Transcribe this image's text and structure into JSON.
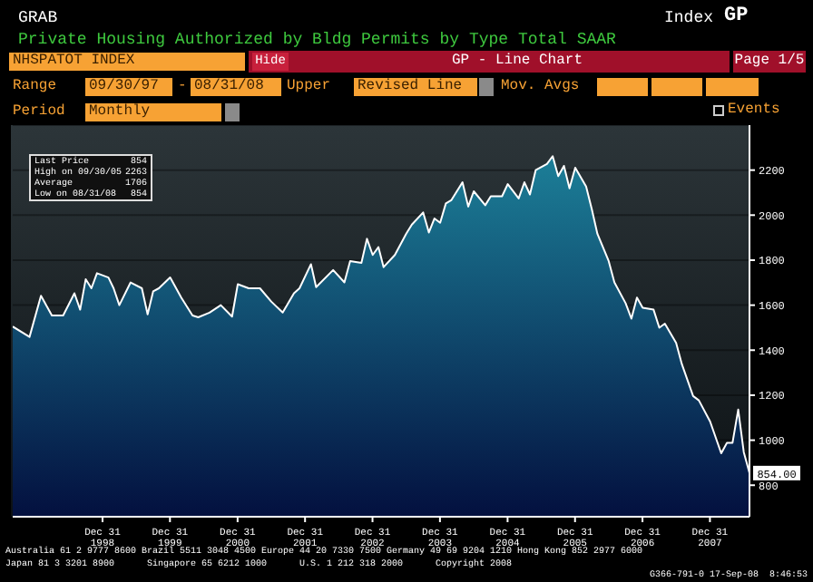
{
  "chart_data": {
    "type": "area",
    "title": "Private Housing Authorized by Bldg Permits by Type Total SAAR",
    "x": [
      "1997-09",
      "1997-12",
      "1998-02",
      "1998-04",
      "1998-06",
      "1998-08",
      "1998-09",
      "1998-10",
      "1998-11",
      "1998-12",
      "1999-02",
      "1999-03",
      "1999-04",
      "1999-06",
      "1999-08",
      "1999-09",
      "1999-10",
      "1999-11",
      "2000-01",
      "2000-03",
      "2000-05",
      "2000-06",
      "2000-08",
      "2000-10",
      "2000-12",
      "2001-01",
      "2001-03",
      "2001-05",
      "2001-07",
      "2001-09",
      "2001-11",
      "2001-12",
      "2002-02",
      "2002-03",
      "2002-06",
      "2002-08",
      "2002-09",
      "2002-11",
      "2002-12",
      "2003-01",
      "2003-02",
      "2003-03",
      "2003-05",
      "2003-07",
      "2003-08",
      "2003-10",
      "2003-11",
      "2003-12",
      "2004-01",
      "2004-02",
      "2004-03",
      "2004-05",
      "2004-06",
      "2004-07",
      "2004-09",
      "2004-10",
      "2004-12",
      "2005-01",
      "2005-03",
      "2005-04",
      "2005-05",
      "2005-06",
      "2005-08",
      "2005-09",
      "2005-10",
      "2005-11",
      "2005-12",
      "2006-01",
      "2006-03",
      "2006-04",
      "2006-05",
      "2006-07",
      "2006-08",
      "2006-10",
      "2006-11",
      "2006-12",
      "2007-01",
      "2007-03",
      "2007-04",
      "2007-05",
      "2007-07",
      "2007-08",
      "2007-10",
      "2007-11",
      "2008-01",
      "2008-03",
      "2008-04",
      "2008-05",
      "2008-06",
      "2008-07",
      "2008-08"
    ],
    "series": [
      {
        "color": "#1c7f98",
        "values": [
          1505,
          1459,
          1642,
          1554,
          1554,
          1653,
          1580,
          1715,
          1675,
          1742,
          1723,
          1675,
          1600,
          1701,
          1675,
          1559,
          1661,
          1675,
          1723,
          1634,
          1554,
          1546,
          1567,
          1600,
          1549,
          1693,
          1675,
          1675,
          1616,
          1567,
          1653,
          1675,
          1782,
          1680,
          1756,
          1701,
          1796,
          1788,
          1895,
          1823,
          1858,
          1769,
          1823,
          1917,
          1958,
          2012,
          1923,
          1985,
          1966,
          2052,
          2066,
          2146,
          2038,
          2106,
          2044,
          2084,
          2084,
          2138,
          2074,
          2146,
          2092,
          2200,
          2227,
          2262,
          2173,
          2219,
          2119,
          2211,
          2127,
          2025,
          1917,
          1796,
          1701,
          1608,
          1540,
          1634,
          1588,
          1580,
          1500,
          1518,
          1432,
          1338,
          1196,
          1177,
          1083,
          942,
          988,
          988,
          1136,
          947,
          854
        ]
      }
    ],
    "xlim": [
      "1997-09",
      "2008-08"
    ],
    "xticks": [
      {
        "value": "1998-12-31",
        "label": "Dec 31 1998"
      },
      {
        "value": "1999-12-31",
        "label": "Dec 31 1999"
      },
      {
        "value": "2000-12-31",
        "label": "Dec 31 2000"
      },
      {
        "value": "2001-12-31",
        "label": "Dec 31 2001"
      },
      {
        "value": "2002-12-31",
        "label": "Dec 31 2002"
      },
      {
        "value": "2003-12-31",
        "label": "Dec 31 2003"
      },
      {
        "value": "2004-12-31",
        "label": "Dec 31 2004"
      },
      {
        "value": "2005-12-31",
        "label": "Dec 31 2005"
      },
      {
        "value": "2006-12-31",
        "label": "Dec 31 2006"
      },
      {
        "value": "2007-12-31",
        "label": "Dec 31 2007"
      }
    ],
    "ylim": [
      660,
      2400
    ],
    "yticks": [
      800,
      1000,
      1200,
      1400,
      1600,
      1800,
      2000,
      2200
    ],
    "grid": "y",
    "annotations": [
      "GRAB",
      "Index",
      "GP",
      "NHSPATOT INDEX",
      "Hide",
      "GP - Line Chart",
      "Page 1/5",
      "Range",
      "09/30/97",
      "-",
      "08/31/08",
      "Upper",
      "Revised Line",
      "Mov. Avgs",
      "Period",
      "Monthly",
      "Events",
      "Last Price",
      "854",
      "High on 09/30/05",
      "2263",
      "Average",
      "1706",
      "Low on 08/31/08",
      "854",
      {
        "text": "854.00",
        "x": "2008-08",
        "y": 854
      },
      "Australia 61 2 9777 8600 Brazil 5511 3048 4500 Europe 44 20 7330 7500 Germany 49 69 9204 1210 Hong Kong 852 2977 6000",
      "Japan 81 3 3201 8900      Singapore 65 6212 1000      U.S. 1 212 318 2000      Copyright 2008",
      "G366-791-0 17-Sep-08  8:46:53"
    ]
  }
}
